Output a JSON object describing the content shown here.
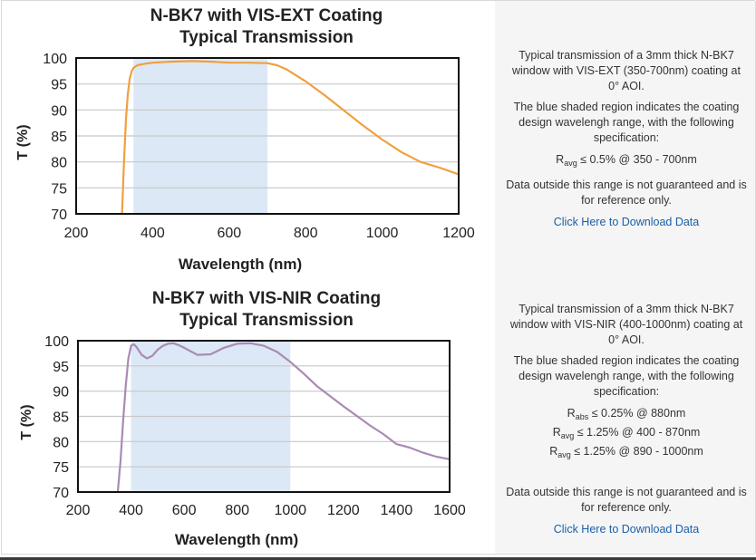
{
  "charts": [
    {
      "title_line1": "N-BK7 with VIS-EXT Coating",
      "title_line2": "Typical Transmission",
      "ylabel": "T (%)",
      "xlabel": "Wavelength (nm)",
      "description": "Typical transmission of a 3mm thick N-BK7 window with VIS-EXT (350-700nm) coating at 0° AOI.",
      "shaded_note": "The blue shaded region indicates the coating design wavelengh range, with the following specification:",
      "specs": [
        {
          "prefix": "R",
          "sub": "avg",
          "text": " ≤ 0.5% @ 350 - 700nm"
        }
      ],
      "disclaimer": "Data outside this range is not guaranteed and is for reference only.",
      "download_link": "Click Here to Download Data"
    },
    {
      "title_line1": "N-BK7 with VIS-NIR Coating",
      "title_line2": "Typical Transmission",
      "ylabel": "T (%)",
      "xlabel": "Wavelength (nm)",
      "description": "Typical transmission of a 3mm thick N-BK7 window with VIS-NIR (400-1000nm) coating at 0° AOI.",
      "shaded_note": "The blue shaded region indicates the coating design wavelengh range, with the following specification:",
      "specs": [
        {
          "prefix": "R",
          "sub": "abs",
          "text": " ≤ 0.25% @ 880nm"
        },
        {
          "prefix": "R",
          "sub": "avg",
          "text": " ≤ 1.25% @ 400 - 870nm"
        },
        {
          "prefix": "R",
          "sub": "avg",
          "text": " ≤ 1.25% @ 890 - 1000nm"
        }
      ],
      "disclaimer": "Data outside this range is not guaranteed and is for reference only.",
      "download_link": "Click Here to Download Data"
    }
  ],
  "chart_data": [
    {
      "type": "line",
      "title": "N-BK7 with VIS-EXT Coating Typical Transmission",
      "xlabel": "Wavelength (nm)",
      "ylabel": "T (%)",
      "xlim": [
        200,
        1200
      ],
      "ylim": [
        70,
        100
      ],
      "xticks": [
        200,
        400,
        600,
        800,
        1000,
        1200
      ],
      "yticks": [
        70,
        75,
        80,
        85,
        90,
        95,
        100
      ],
      "grid": true,
      "shaded_range": [
        350,
        700
      ],
      "shade_color": "#dce8f5",
      "series": [
        {
          "color": "#f0a040",
          "x": [
            320,
            325,
            330,
            335,
            340,
            345,
            350,
            360,
            380,
            400,
            450,
            500,
            550,
            600,
            650,
            700,
            725,
            750,
            800,
            850,
            900,
            950,
            1000,
            1050,
            1100,
            1150,
            1200
          ],
          "y": [
            70,
            80,
            88,
            93,
            96,
            97.4,
            98.1,
            98.6,
            98.9,
            99.1,
            99.3,
            99.4,
            99.3,
            99.1,
            99.1,
            99.0,
            98.6,
            97.8,
            95.5,
            92.8,
            89.9,
            87.0,
            84.3,
            81.9,
            80.0,
            78.9,
            77.6
          ]
        }
      ]
    },
    {
      "type": "line",
      "title": "N-BK7 with VIS-NIR Coating Typical Transmission",
      "xlabel": "Wavelength (nm)",
      "ylabel": "T (%)",
      "xlim": [
        200,
        1600
      ],
      "ylim": [
        70,
        100
      ],
      "xticks": [
        200,
        400,
        600,
        800,
        1000,
        1200,
        1400,
        1600
      ],
      "yticks": [
        70,
        75,
        80,
        85,
        90,
        95,
        100
      ],
      "grid": true,
      "shaded_range": [
        400,
        1000
      ],
      "shade_color": "#dce8f5",
      "series": [
        {
          "color": "#a98bb4",
          "x": [
            350,
            360,
            370,
            380,
            390,
            400,
            410,
            420,
            440,
            460,
            480,
            500,
            520,
            540,
            560,
            580,
            600,
            650,
            700,
            750,
            800,
            850,
            900,
            950,
            1000,
            1050,
            1100,
            1200,
            1300,
            1350,
            1400,
            1450,
            1500,
            1550,
            1600
          ],
          "y": [
            70,
            76,
            84,
            91,
            96.5,
            99.0,
            99.3,
            98.8,
            97.2,
            96.5,
            97.0,
            98.2,
            99.0,
            99.4,
            99.5,
            99.1,
            98.6,
            97.2,
            97.3,
            98.6,
            99.4,
            99.5,
            99.0,
            97.8,
            95.8,
            93.5,
            91.0,
            87.0,
            83.2,
            81.5,
            79.5,
            78.8,
            77.8,
            77.0,
            76.5
          ]
        }
      ]
    }
  ]
}
